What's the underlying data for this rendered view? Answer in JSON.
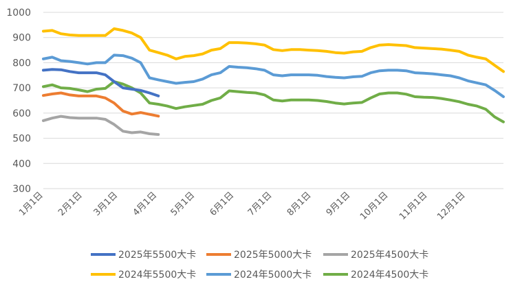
{
  "chart_data": {
    "type": "line",
    "title": "",
    "xlabel": "",
    "ylabel": "",
    "ylim": [
      300,
      1000
    ],
    "yticks": [
      300,
      400,
      500,
      600,
      700,
      800,
      900,
      1000
    ],
    "x_unit": "week",
    "x_range": [
      0,
      52
    ],
    "xtick_labels": [
      "1月1日",
      "2月1日",
      "3月1日",
      "4月1日",
      "5月1日",
      "6月1日",
      "7月1日",
      "8月1日",
      "9月1日",
      "10月1日",
      "11月1日",
      "12月1日"
    ],
    "xtick_positions": [
      0,
      4.43,
      8.43,
      12.86,
      17.14,
      21.57,
      25.86,
      30.29,
      34.71,
      39,
      43.43,
      47.71
    ],
    "grid": "horizontal",
    "legend_position": "bottom",
    "series": [
      {
        "name": "2025年5500大卡",
        "color": "#4472c4",
        "x": [
          0,
          1,
          2,
          3,
          4,
          5,
          6,
          7,
          8,
          9,
          10,
          11,
          12,
          13
        ],
        "y": [
          770,
          773,
          772,
          765,
          760,
          760,
          760,
          752,
          725,
          700,
          695,
          690,
          680,
          668
        ]
      },
      {
        "name": "2025年5000大卡",
        "color": "#ed7d31",
        "x": [
          0,
          1,
          2,
          3,
          4,
          5,
          6,
          7,
          8,
          9,
          10,
          11,
          12,
          13
        ],
        "y": [
          670,
          676,
          680,
          672,
          668,
          668,
          668,
          660,
          640,
          608,
          596,
          602,
          595,
          588
        ]
      },
      {
        "name": "2025年4500大卡",
        "color": "#a5a5a5",
        "x": [
          0,
          1,
          2,
          3,
          4,
          5,
          6,
          7,
          8,
          9,
          10,
          11,
          12,
          13
        ],
        "y": [
          570,
          580,
          587,
          582,
          580,
          580,
          580,
          575,
          555,
          528,
          522,
          525,
          518,
          515
        ]
      },
      {
        "name": "2024年5500大卡",
        "color": "#ffc000",
        "x": [
          0,
          1,
          2,
          3,
          4,
          5,
          6,
          7,
          8,
          9,
          10,
          11,
          12,
          13,
          14,
          15,
          16,
          17,
          18,
          19,
          20,
          21,
          22,
          23,
          24,
          25,
          26,
          27,
          28,
          29,
          30,
          31,
          32,
          33,
          34,
          35,
          36,
          37,
          38,
          39,
          40,
          41,
          42,
          43,
          44,
          45,
          46,
          47,
          48,
          49,
          50,
          51,
          52
        ],
        "y": [
          925,
          928,
          915,
          910,
          908,
          908,
          908,
          908,
          935,
          928,
          918,
          900,
          850,
          840,
          830,
          815,
          825,
          828,
          835,
          850,
          856,
          880,
          880,
          878,
          875,
          870,
          852,
          848,
          852,
          852,
          850,
          848,
          845,
          840,
          838,
          843,
          845,
          860,
          870,
          872,
          870,
          868,
          860,
          858,
          856,
          854,
          850,
          845,
          830,
          822,
          815,
          790,
          765
        ]
      },
      {
        "name": "2024年5000大卡",
        "color": "#5b9bd5",
        "x": [
          0,
          1,
          2,
          3,
          4,
          5,
          6,
          7,
          8,
          9,
          10,
          11,
          12,
          13,
          14,
          15,
          16,
          17,
          18,
          19,
          20,
          21,
          22,
          23,
          24,
          25,
          26,
          27,
          28,
          29,
          30,
          31,
          32,
          33,
          34,
          35,
          36,
          37,
          38,
          39,
          40,
          41,
          42,
          43,
          44,
          45,
          46,
          47,
          48,
          49,
          50,
          51,
          52
        ],
        "y": [
          815,
          822,
          808,
          805,
          800,
          795,
          800,
          800,
          830,
          828,
          818,
          800,
          740,
          732,
          725,
          718,
          722,
          725,
          735,
          752,
          760,
          785,
          782,
          780,
          776,
          770,
          752,
          748,
          752,
          752,
          752,
          750,
          745,
          742,
          740,
          744,
          746,
          760,
          768,
          770,
          770,
          768,
          760,
          758,
          756,
          752,
          748,
          740,
          728,
          720,
          712,
          690,
          665
        ]
      },
      {
        "name": "2024年4500大卡",
        "color": "#70ad47",
        "x": [
          0,
          1,
          2,
          3,
          4,
          5,
          6,
          7,
          8,
          9,
          10,
          11,
          12,
          13,
          14,
          15,
          16,
          17,
          18,
          19,
          20,
          21,
          22,
          23,
          24,
          25,
          26,
          27,
          28,
          29,
          30,
          31,
          32,
          33,
          34,
          35,
          36,
          37,
          38,
          39,
          40,
          41,
          42,
          43,
          44,
          45,
          46,
          47,
          48,
          49,
          50,
          51,
          52
        ],
        "y": [
          705,
          712,
          700,
          698,
          692,
          685,
          695,
          698,
          725,
          715,
          700,
          680,
          640,
          635,
          628,
          618,
          625,
          630,
          635,
          650,
          660,
          688,
          685,
          682,
          680,
          672,
          652,
          648,
          652,
          652,
          652,
          650,
          646,
          640,
          636,
          640,
          642,
          660,
          676,
          680,
          680,
          675,
          665,
          663,
          662,
          658,
          652,
          645,
          635,
          628,
          615,
          585,
          565
        ]
      }
    ]
  }
}
